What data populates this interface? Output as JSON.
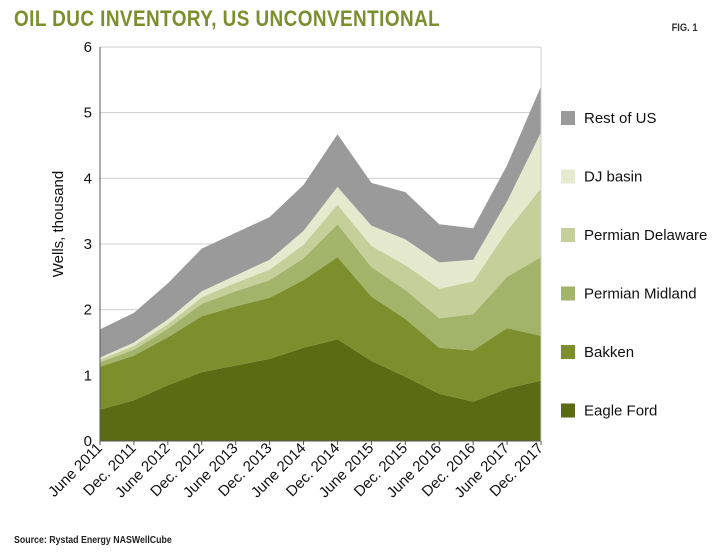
{
  "title": "OIL DUC INVENTORY, US UNCONVENTIONAL",
  "fig_label": "FIG. 1",
  "source": "Source: Rystad Energy NASWellCube",
  "chart_data": {
    "type": "area",
    "stacked": true,
    "ylabel": "Wells, thousand",
    "ylim": [
      0,
      6
    ],
    "yticks": [
      0,
      1,
      2,
      3,
      4,
      5,
      6
    ],
    "grid": true,
    "legend_position": "right",
    "x": [
      "June 2011",
      "Dec. 2011",
      "June 2012",
      "Dec. 2012",
      "June 2013",
      "Dec. 2013",
      "June 2014",
      "Dec. 2014",
      "June 2015",
      "Dec. 2015",
      "June 2016",
      "Dec. 2016",
      "June 2017",
      "Dec. 2017"
    ],
    "series": [
      {
        "name": "Eagle Ford",
        "color": "#5a6b14",
        "values": [
          0.48,
          0.62,
          0.85,
          1.05,
          1.15,
          1.25,
          1.42,
          1.55,
          1.22,
          0.98,
          0.72,
          0.6,
          0.8,
          0.92
        ]
      },
      {
        "name": "Bakken",
        "color": "#7d8f2d",
        "values": [
          0.65,
          0.68,
          0.73,
          0.85,
          0.9,
          0.93,
          1.03,
          1.25,
          0.98,
          0.88,
          0.7,
          0.78,
          0.92,
          0.68
        ]
      },
      {
        "name": "Permian Midland",
        "color": "#a2b36a",
        "values": [
          0.07,
          0.09,
          0.13,
          0.19,
          0.23,
          0.27,
          0.33,
          0.5,
          0.45,
          0.44,
          0.45,
          0.55,
          0.78,
          1.2
        ]
      },
      {
        "name": "Permian Delaware",
        "color": "#c4cf9a",
        "values": [
          0.04,
          0.06,
          0.07,
          0.1,
          0.13,
          0.16,
          0.21,
          0.3,
          0.32,
          0.38,
          0.45,
          0.5,
          0.7,
          1.05
        ]
      },
      {
        "name": "DJ basin",
        "color": "#e5e9ce",
        "values": [
          0.03,
          0.05,
          0.07,
          0.09,
          0.11,
          0.15,
          0.21,
          0.27,
          0.31,
          0.39,
          0.4,
          0.33,
          0.45,
          0.85
        ]
      },
      {
        "name": "Rest of US",
        "color": "#9a9a9a",
        "values": [
          0.43,
          0.45,
          0.55,
          0.65,
          0.65,
          0.65,
          0.7,
          0.8,
          0.65,
          0.72,
          0.58,
          0.48,
          0.55,
          0.7
        ]
      }
    ]
  }
}
